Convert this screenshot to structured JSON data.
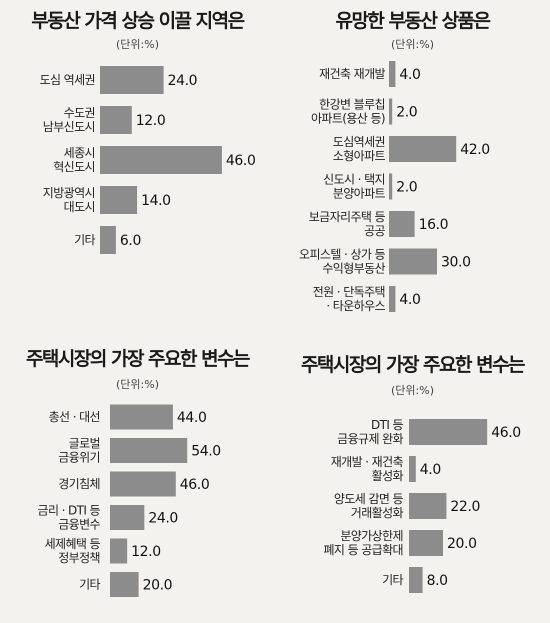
{
  "chart_data": [
    {
      "type": "bar",
      "title": "부동산 가격 상승 이끌 지역은",
      "unit": "(단위:%)",
      "categories": [
        [
          "도심 역세권"
        ],
        [
          "수도권",
          "남부신도시"
        ],
        [
          "세종시",
          "혁신도시"
        ],
        [
          "지방광역시",
          "대도시"
        ],
        [
          "기타"
        ]
      ],
      "values": [
        24.0,
        12.0,
        46.0,
        14.0,
        6.0
      ],
      "labels": [
        "24.0",
        "12.0",
        "46.0",
        "14.0",
        "6.0"
      ]
    },
    {
      "type": "bar",
      "title": "유망한 부동산 상품은",
      "unit": "(단위:%)",
      "categories": [
        [
          "재건축 재개발"
        ],
        [
          "한강변 블루칩",
          "아파트(용산 등)"
        ],
        [
          "도심역세권",
          "소형아파트"
        ],
        [
          "신도시 · 택지",
          "분양아파트"
        ],
        [
          "보금자리주택 등",
          "공공"
        ],
        [
          "오피스텔 · 상가 등",
          "수익형부동산"
        ],
        [
          "전원 · 단독주택",
          "· 타운하우스"
        ]
      ],
      "values": [
        4.0,
        2.0,
        42.0,
        2.0,
        16.0,
        30.0,
        4.0
      ],
      "labels": [
        "4.0",
        "2.0",
        "42.0",
        "2.0",
        "16.0",
        "30.0",
        "4.0"
      ]
    },
    {
      "type": "bar",
      "title": "주택시장의 가장 주요한 변수는",
      "unit": "(단위:%)",
      "categories": [
        [
          "총선 · 대선"
        ],
        [
          "글로벌",
          "금융위기"
        ],
        [
          "경기침체"
        ],
        [
          "금리 · DTI 등",
          "금융변수"
        ],
        [
          "세제혜택 등",
          "정부정책"
        ],
        [
          "기타"
        ]
      ],
      "values": [
        44.0,
        54.0,
        46.0,
        24.0,
        12.0,
        20.0
      ],
      "labels": [
        "44.0",
        "54.0",
        "46.0",
        "24.0",
        "12.0",
        "20.0"
      ]
    },
    {
      "type": "bar",
      "title": "주택시장의 가장 주요한 변수는",
      "unit": "(단위:%)",
      "categories": [
        [
          "DTI 등",
          "금융규제 완화"
        ],
        [
          "재개발 · 재건축",
          "활성화"
        ],
        [
          "양도세 감면 등",
          "거래활성화"
        ],
        [
          "분양가상한제",
          "폐지 등 공급확대"
        ],
        [
          "기타"
        ]
      ],
      "values": [
        46.0,
        4.0,
        22.0,
        20.0,
        8.0
      ],
      "labels": [
        "46.0",
        "4.0",
        "22.0",
        "20.0",
        "8.0"
      ]
    }
  ]
}
